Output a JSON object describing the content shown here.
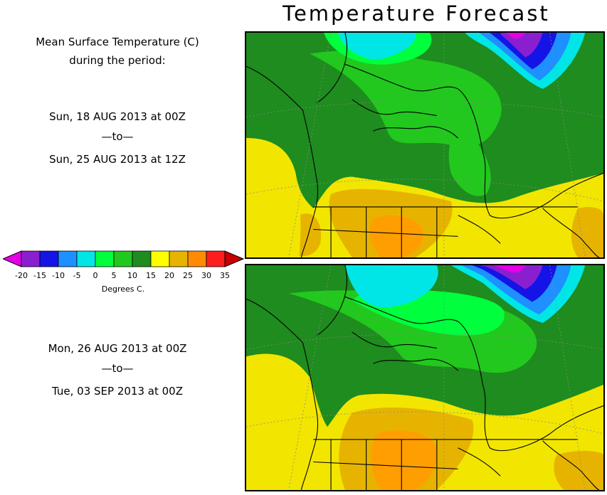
{
  "header": {
    "title": "Temperature Forecast"
  },
  "info": {
    "line1": "Mean Surface Temperature (C)",
    "line2": "during the period:"
  },
  "period1": {
    "start": "Sun, 18 AUG 2013 at 00Z",
    "sep": "—to—",
    "end": "Sun, 25 AUG 2013 at 12Z"
  },
  "period2": {
    "start": "Mon, 26 AUG 2013 at 00Z",
    "sep": "—to—",
    "end": "Tue, 03 SEP 2013 at 00Z"
  },
  "legend": {
    "ticks": [
      "-20",
      "-15",
      "-10",
      "-5",
      "0",
      "5",
      "10",
      "15",
      "20",
      "25",
      "30",
      "35"
    ],
    "units": "Degrees C.",
    "colors": [
      "#e600e6",
      "#8a1fd0",
      "#1414e6",
      "#1e90ff",
      "#00e6e6",
      "#00ff3c",
      "#22c81e",
      "#1e8c1e",
      "#ffff00",
      "#e6b400",
      "#ff8c00",
      "#ff1e1e",
      "#c80000"
    ]
  }
}
